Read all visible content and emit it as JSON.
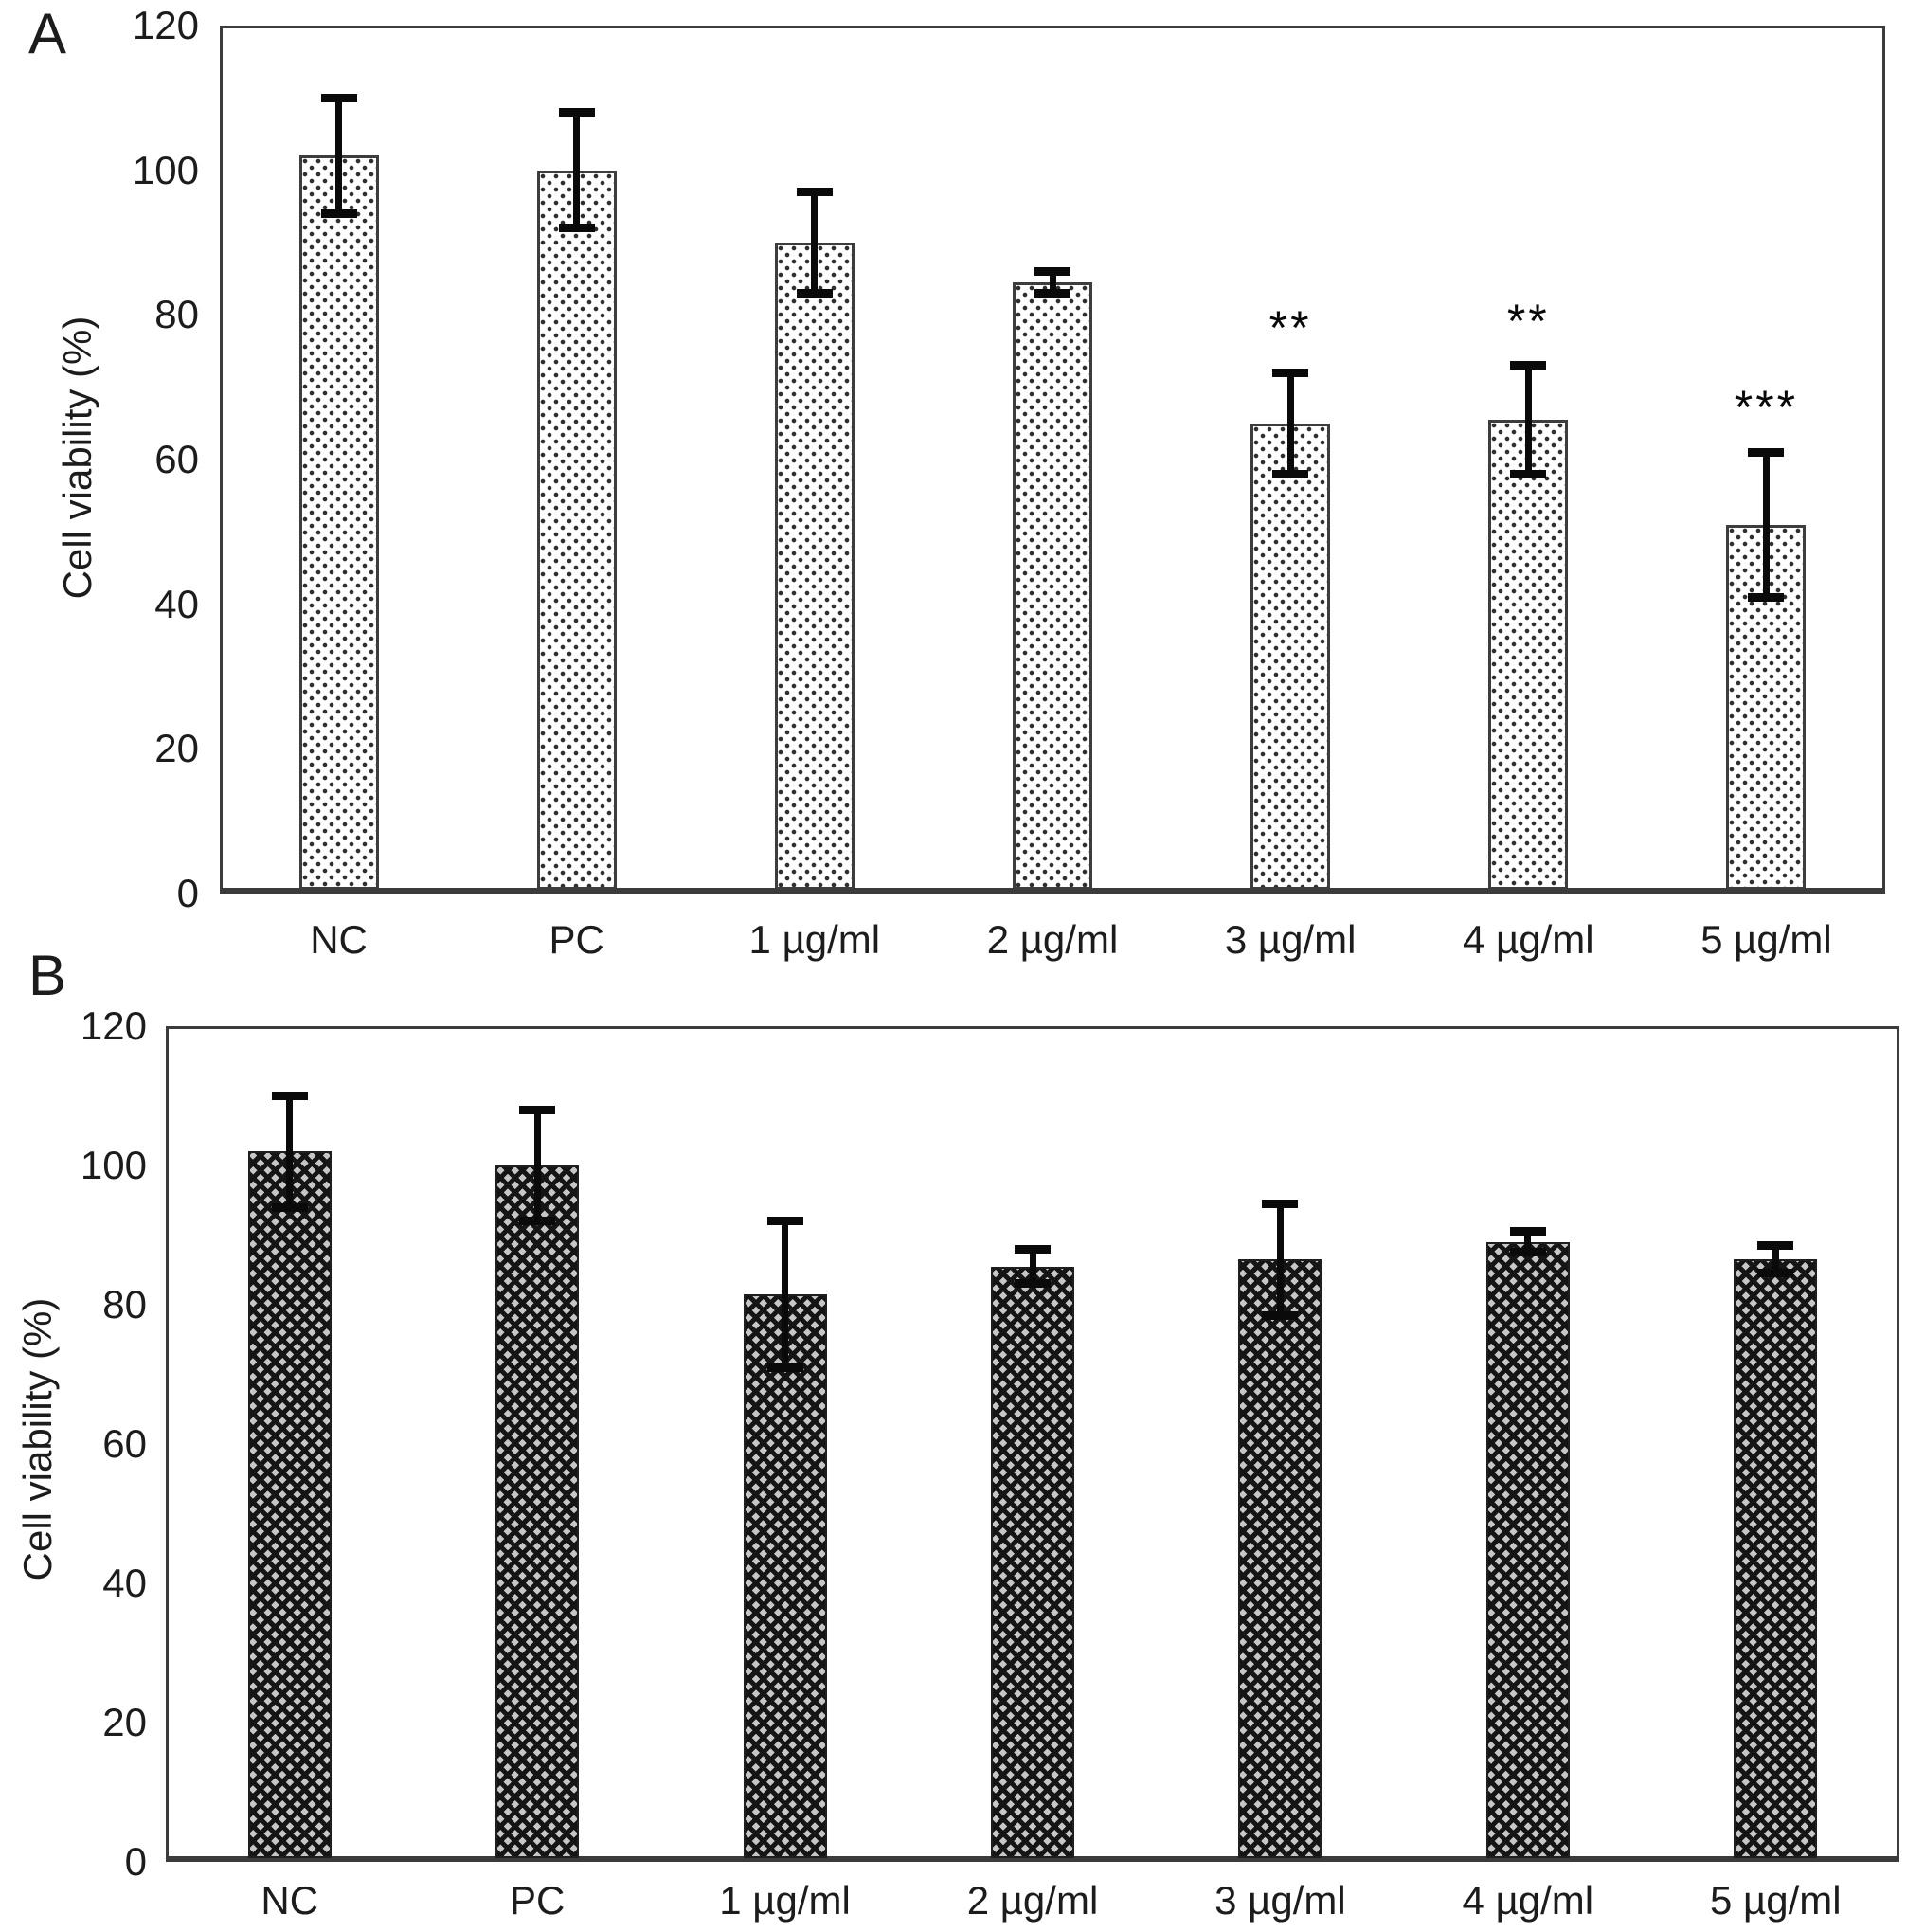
{
  "figure": {
    "panels": [
      {
        "label": "A",
        "y_axis_label": "Cell viability (%)"
      },
      {
        "label": "B",
        "y_axis_label": "Cell viability (%)"
      }
    ]
  },
  "chart_data": [
    {
      "type": "bar",
      "panel": "A",
      "title": "",
      "xlabel": "",
      "ylabel": "Cell viability (%)",
      "ylim": [
        0,
        120
      ],
      "yticks": [
        0,
        20,
        40,
        60,
        80,
        100,
        120
      ],
      "grid": false,
      "legend": null,
      "bar_pattern": "dot-stipple",
      "categories": [
        "NC",
        "PC",
        "1 µg/ml",
        "2 µg/ml",
        "3 µg/ml",
        "4 µg/ml",
        "5 µg/ml"
      ],
      "values": [
        102,
        100,
        90,
        84.5,
        65,
        65.5,
        51
      ],
      "error_bars": [
        8,
        8,
        7,
        1.5,
        7,
        7.5,
        10
      ],
      "significance": [
        "",
        "",
        "",
        "",
        "**",
        "**",
        "***"
      ]
    },
    {
      "type": "bar",
      "panel": "B",
      "title": "",
      "xlabel": "",
      "ylabel": "Cell viability (%)",
      "ylim": [
        0,
        120
      ],
      "yticks": [
        0,
        20,
        40,
        60,
        80,
        100,
        120
      ],
      "grid": false,
      "legend": null,
      "bar_pattern": "crosshatch",
      "categories": [
        "NC",
        "PC",
        "1 µg/ml",
        "2 µg/ml",
        "3 µg/ml",
        "4 µg/ml",
        "5 µg/ml"
      ],
      "values": [
        102,
        100,
        81.5,
        85.5,
        86.5,
        89,
        86.5
      ],
      "error_bars": [
        8,
        8,
        10.5,
        2.5,
        8,
        1.5,
        2
      ],
      "significance": [
        "",
        "",
        "",
        "",
        "",
        "",
        ""
      ]
    }
  ]
}
